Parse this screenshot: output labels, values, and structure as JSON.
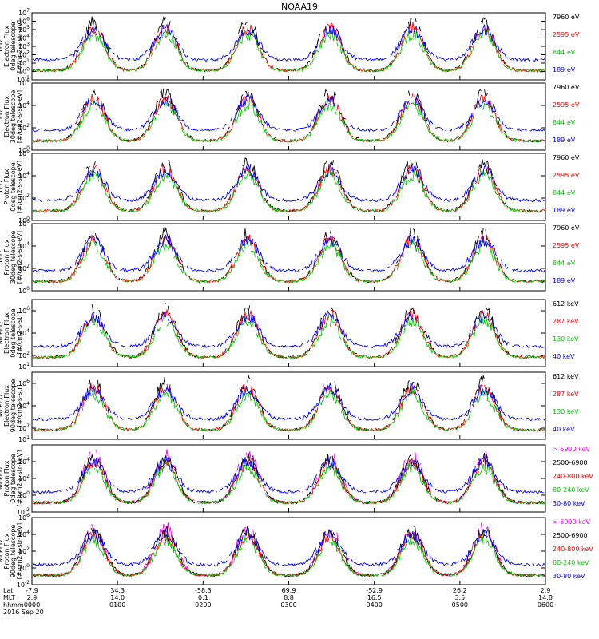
{
  "title": "NOAA19",
  "colors": {
    "ch1": "#000000",
    "ch2": "#ff0000",
    "ch3": "#00cc00",
    "ch4": "#0000ff",
    "ch5": "#ff00ff"
  },
  "chart_data": [
    {
      "type": "line",
      "instrument": "TED",
      "ylabel": [
        "TED",
        "Electron Flux",
        "0deg telescope",
        "[#/cm2-s-str-eV]"
      ],
      "ylim": [
        0.1,
        10000000
      ],
      "yticks": [
        {
          "v": 0.1,
          "e": "-1"
        },
        {
          "v": 1,
          "e": "0"
        },
        {
          "v": 10,
          "e": "1"
        },
        {
          "v": 100,
          "e": "2"
        },
        {
          "v": 1000,
          "e": "3"
        },
        {
          "v": 10000,
          "e": "4"
        },
        {
          "v": 100000,
          "e": "5"
        },
        {
          "v": 1000000,
          "e": "6"
        },
        {
          "v": 10000000,
          "e": "7"
        }
      ],
      "series": [
        {
          "name": "7960 eV",
          "color": "#000000"
        },
        {
          "name": "2595 eV",
          "color": "#ff0000"
        },
        {
          "name": "844 eV",
          "color": "#00cc00"
        },
        {
          "name": "189 eV",
          "color": "#0000ff"
        }
      ]
    },
    {
      "type": "line",
      "instrument": "TED",
      "ylabel": [
        "TED",
        "Electron Flux",
        "30deg telescope",
        "[#/cm2-s-str-eV]"
      ],
      "ylim": [
        1,
        1000000
      ],
      "yticks": [
        {
          "v": 1,
          "e": "0"
        },
        {
          "v": 100,
          "e": "2"
        },
        {
          "v": 10000,
          "e": "4"
        },
        {
          "v": 1000000,
          "e": "6"
        }
      ],
      "series": [
        {
          "name": "7960 eV",
          "color": "#000000"
        },
        {
          "name": "2595 eV",
          "color": "#ff0000"
        },
        {
          "name": "844 eV",
          "color": "#00cc00"
        },
        {
          "name": "189 eV",
          "color": "#0000ff"
        }
      ]
    },
    {
      "type": "line",
      "instrument": "TED",
      "ylabel": [
        "TED",
        "Proton Flux",
        "0deg telescope",
        "[#/cm2-s-str-eV]"
      ],
      "ylim": [
        1,
        1000000
      ],
      "yticks": [
        {
          "v": 1,
          "e": "0"
        },
        {
          "v": 100,
          "e": "2"
        },
        {
          "v": 10000,
          "e": "4"
        },
        {
          "v": 1000000,
          "e": "6"
        }
      ],
      "series": [
        {
          "name": "7960 eV",
          "color": "#000000"
        },
        {
          "name": "2595 eV",
          "color": "#ff0000"
        },
        {
          "name": "844 eV",
          "color": "#00cc00"
        },
        {
          "name": "189 eV",
          "color": "#0000ff"
        }
      ]
    },
    {
      "type": "line",
      "instrument": "TED",
      "ylabel": [
        "TED",
        "Proton Flux",
        "30deg telescope",
        "[#/cm2-s-str-eV]"
      ],
      "ylim": [
        1,
        1000000
      ],
      "yticks": [
        {
          "v": 1,
          "e": "0"
        },
        {
          "v": 100,
          "e": "2"
        },
        {
          "v": 10000,
          "e": "4"
        },
        {
          "v": 1000000,
          "e": "6"
        }
      ],
      "series": [
        {
          "name": "7960 eV",
          "color": "#000000"
        },
        {
          "name": "2595 eV",
          "color": "#ff0000"
        },
        {
          "name": "844 eV",
          "color": "#00cc00"
        },
        {
          "name": "189 eV",
          "color": "#0000ff"
        }
      ]
    },
    {
      "type": "line",
      "instrument": "MEPED",
      "ylabel": [
        "MEPED",
        "Electron Flux",
        "0deg telescope",
        "[#/cm2-s-str]"
      ],
      "ylim": [
        10,
        10000000
      ],
      "yticks": [
        {
          "v": 10,
          "e": "1"
        },
        {
          "v": 100,
          "e": "2"
        },
        {
          "v": 10000,
          "e": "4"
        },
        {
          "v": 1000000,
          "e": "6"
        }
      ],
      "series": [
        {
          "name": "612 keV",
          "color": "#000000"
        },
        {
          "name": "287 keV",
          "color": "#ff0000"
        },
        {
          "name": "130 keV",
          "color": "#00cc00"
        },
        {
          "name": "40 keV",
          "color": "#0000ff"
        }
      ]
    },
    {
      "type": "line",
      "instrument": "MEPED",
      "ylabel": [
        "MEPED",
        "Electron Flux",
        "90deg telescope",
        "[#/cm2-s-str]"
      ],
      "ylim": [
        10,
        10000000
      ],
      "yticks": [
        {
          "v": 10,
          "e": "1"
        },
        {
          "v": 100,
          "e": "2"
        },
        {
          "v": 10000,
          "e": "4"
        },
        {
          "v": 1000000,
          "e": "6"
        }
      ],
      "series": [
        {
          "name": "612 keV",
          "color": "#000000"
        },
        {
          "name": "287 keV",
          "color": "#ff0000"
        },
        {
          "name": "130 keV",
          "color": "#00cc00"
        },
        {
          "name": "40 keV",
          "color": "#0000ff"
        }
      ]
    },
    {
      "type": "line",
      "instrument": "MEPED",
      "ylabel": [
        "MEPED",
        "Proton Flux",
        "0deg telescope",
        "[#/cm2-s-str-keV]"
      ],
      "ylim": [
        0.01,
        1000000
      ],
      "yticks": [
        {
          "v": 0.01,
          "e": "-2"
        },
        {
          "v": 1,
          "e": "0"
        },
        {
          "v": 100,
          "e": "2"
        },
        {
          "v": 10000,
          "e": "4"
        }
      ],
      "series": [
        {
          "name": "> 6900 keV",
          "color": "#ff00ff"
        },
        {
          "name": "2500-6900",
          "color": "#000000"
        },
        {
          "name": "240-800 keV",
          "color": "#ff0000"
        },
        {
          "name": "80-240 keV",
          "color": "#00cc00"
        },
        {
          "name": "30-80 keV",
          "color": "#0000ff"
        }
      ]
    },
    {
      "type": "line",
      "instrument": "MEPED",
      "ylabel": [
        "MEPED",
        "Proton Flux",
        "90deg telescope",
        "[#/cm2-s-str-keV]"
      ],
      "ylim": [
        0.01,
        1000000
      ],
      "yticks": [
        {
          "v": 0.01,
          "e": "-2"
        },
        {
          "v": 1,
          "e": "0"
        },
        {
          "v": 100,
          "e": "2"
        },
        {
          "v": 10000,
          "e": "4"
        },
        {
          "v": 1000000,
          "e": "6"
        }
      ],
      "series": [
        {
          "name": "> 6900 keV",
          "color": "#ff00ff"
        },
        {
          "name": "2500-6900",
          "color": "#000000"
        },
        {
          "name": "240-800 keV",
          "color": "#ff0000"
        },
        {
          "name": "80-240 keV",
          "color": "#00cc00"
        },
        {
          "name": "30-80 keV",
          "color": "#0000ff"
        }
      ]
    }
  ],
  "xaxis": {
    "row_labels": [
      "Lat",
      "MLT",
      "hhmm"
    ],
    "date": "2016 Sep 20",
    "ticks": [
      {
        "lat": "-7.9",
        "mlt": "2.9",
        "hhmm": "0000"
      },
      {
        "lat": "34.3",
        "mlt": "14.0",
        "hhmm": "0100"
      },
      {
        "lat": "-58.3",
        "mlt": "0.1",
        "hhmm": "0200"
      },
      {
        "lat": "69.9",
        "mlt": "8.8",
        "hhmm": "0300"
      },
      {
        "lat": "-52.9",
        "mlt": "16.5",
        "hhmm": "0400"
      },
      {
        "lat": "26.2",
        "mlt": "3.5",
        "hhmm": "0500"
      },
      {
        "lat": "2.9",
        "mlt": "14.8",
        "hhmm": "0600"
      }
    ]
  }
}
